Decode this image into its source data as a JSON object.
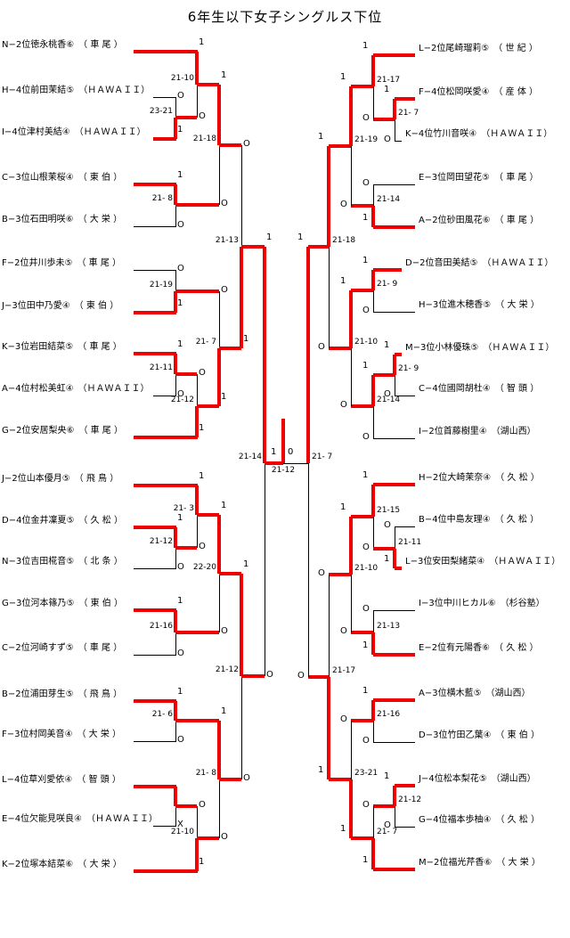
{
  "title": "6年生以下女子シングルス下位",
  "accent_color": "#ee0000",
  "line_color": "#000000",
  "players": [
    {
      "code": "N−2",
      "name": "徳永桃香",
      "grade": "⑥",
      "club": "車尾",
      "label": "N−2位徳永桃香⑥　（ 車 尾 ）"
    },
    {
      "code": "H−4",
      "name": "前田茉結",
      "grade": "⑤",
      "club": "HAWAII",
      "label": "H−4位前田茉結⑤　（ＨＡＷＡＩＩ）"
    },
    {
      "code": "I−4",
      "name": "津村美結",
      "grade": "④",
      "club": "HAWAII",
      "label": "I−4位津村美結④　（ＨＡＷＡＩＩ）"
    },
    {
      "code": "C−3",
      "name": "山根茉桜",
      "grade": "④",
      "club": "東伯",
      "label": "C−3位山根茉桜④　（ 東 伯 ）"
    },
    {
      "code": "B−3",
      "name": "石田明咲",
      "grade": "⑥",
      "club": "大栄",
      "label": "B−3位石田明咲⑥　（ 大 栄 ）"
    },
    {
      "code": "F−2",
      "name": "井川歩未",
      "grade": "⑤",
      "club": "車尾",
      "label": "F−2位井川歩未⑤　（ 車 尾 ）"
    },
    {
      "code": "J−3",
      "name": "田中乃愛",
      "grade": "④",
      "club": "東伯",
      "label": "J−3位田中乃愛④　（ 東 伯 ）"
    },
    {
      "code": "K−3",
      "name": "岩田結菜",
      "grade": "⑤",
      "club": "車尾",
      "label": "K−3位岩田結菜⑤　（ 車 尾 ）"
    },
    {
      "code": "A−4",
      "name": "村松美虹",
      "grade": "④",
      "club": "HAWAII",
      "label": "A−4位村松美虹④　（ＨＡＷＡＩＩ）"
    },
    {
      "code": "G−2",
      "name": "安居梨央",
      "grade": "⑥",
      "club": "車尾",
      "label": "G−2位安居梨央⑥　（ 車 尾 ）"
    },
    {
      "code": "J−2",
      "name": "山本優月",
      "grade": "⑤",
      "club": "飛鳥",
      "label": "J−2位山本優月⑤　（ 飛 鳥 ）"
    },
    {
      "code": "D−4",
      "name": "金井凜夏",
      "grade": "⑤",
      "club": "久松",
      "label": "D−4位金井凜夏⑤　（ 久 松 ）"
    },
    {
      "code": "N−3",
      "name": "吉田椛音",
      "grade": "⑤",
      "club": "北条",
      "label": "N−3位吉田椛音⑤　（ 北 条 ）"
    },
    {
      "code": "G−3",
      "name": "河本篠乃",
      "grade": "⑤",
      "club": "東伯",
      "label": "G−3位河本篠乃⑤　（ 東 伯 ）"
    },
    {
      "code": "C−2",
      "name": "河崎すず",
      "grade": "⑤",
      "club": "車尾",
      "label": "C−2位河崎すず⑤　（ 車 尾 ）"
    },
    {
      "code": "B−2",
      "name": "浦田芽生",
      "grade": "⑤",
      "club": "飛鳥",
      "label": "B−2位浦田芽生⑤　（ 飛 鳥 ）"
    },
    {
      "code": "F−3",
      "name": "村岡美音",
      "grade": "④",
      "club": "大栄",
      "label": "F−3位村岡美音④　（ 大 栄 ）"
    },
    {
      "code": "L−4",
      "name": "草刈愛依",
      "grade": "④",
      "club": "智頭",
      "label": "L−4位草刈愛依④　（ 智 頭 ）"
    },
    {
      "code": "E−4",
      "name": "欠能見咲良",
      "grade": "④",
      "club": "HAWAII",
      "label": "E−4位欠能見咲良④　（ＨＡＷＡＩＩ）"
    },
    {
      "code": "K−2",
      "name": "塚本結菜",
      "grade": "⑥",
      "club": "大栄",
      "label": "K−2位塚本結菜⑥　（ 大 栄 ）"
    },
    {
      "code": "L−2",
      "name": "尾崎瑠莉",
      "grade": "⑤",
      "club": "世紀",
      "label": "L−2位尾崎瑠莉⑤　（ 世 紀 ）"
    },
    {
      "code": "F−4",
      "name": "松岡咲愛",
      "grade": "④",
      "club": "産体",
      "label": "F−4位松岡咲愛④　（ 産 体 ）"
    },
    {
      "code": "K−4",
      "name": "竹川音咲",
      "grade": "④",
      "club": "HAWAII",
      "label": "K−4位竹川音咲④　（ＨＡＷＡＩＩ）"
    },
    {
      "code": "E−3",
      "name": "岡田望花",
      "grade": "⑤",
      "club": "車尾",
      "label": "E−3位岡田望花⑤　（ 車 尾 ）"
    },
    {
      "code": "A−2",
      "name": "砂田風花",
      "grade": "⑥",
      "club": "車尾",
      "label": "A−2位砂田風花⑥　（ 車 尾 ）"
    },
    {
      "code": "D−2",
      "name": "音田美結",
      "grade": "⑤",
      "club": "HAWAII",
      "label": "D−2位音田美結⑤　（ＨＡＷＡＩＩ）"
    },
    {
      "code": "H−3",
      "name": "進木穂香",
      "grade": "⑤",
      "club": "大栄",
      "label": "H−3位進木穂香⑤　（ 大 栄 ）"
    },
    {
      "code": "M−3",
      "name": "小林優珠",
      "grade": "⑤",
      "club": "HAWAII",
      "label": "M−3位小林優珠⑤　（ＨＡＷＡＩＩ）"
    },
    {
      "code": "C−4",
      "name": "國岡胡杜",
      "grade": "④",
      "club": "智頭",
      "label": "C−4位國岡胡杜④　（ 智 頭 ）"
    },
    {
      "code": "I−2",
      "name": "首藤樹里",
      "grade": "④",
      "club": "湖山西",
      "label": "I−2位首藤樹里④　（湖山西）"
    },
    {
      "code": "H−2",
      "name": "大崎茉奈",
      "grade": "④",
      "club": "久松",
      "label": "H−2位大崎茉奈④　（ 久 松 ）"
    },
    {
      "code": "B−4",
      "name": "中島友理",
      "grade": "④",
      "club": "久松",
      "label": "B−4位中島友理④　（ 久 松 ）"
    },
    {
      "code": "L−3",
      "name": "安田梨緒菜",
      "grade": "④",
      "club": "HAWAII",
      "label": "L−3位安田梨緒菜④　（ＨＡＷＡＩＩ）"
    },
    {
      "code": "I−3",
      "name": "中川ヒカル",
      "grade": "⑥",
      "club": "杉谷塾",
      "label": "I−3位中川ヒカル⑥　（杉谷塾）"
    },
    {
      "code": "E−2",
      "name": "有元陽香",
      "grade": "⑥",
      "club": "久松",
      "label": "E−2位有元陽香⑥　（ 久 松 ）"
    },
    {
      "code": "A−3",
      "name": "横木藍",
      "grade": "⑤",
      "club": "湖山西",
      "label": "A−3位横木藍⑤　（湖山西）"
    },
    {
      "code": "D−3",
      "name": "竹田乙葉",
      "grade": "④",
      "club": "東伯",
      "label": "D−3位竹田乙葉④　（ 東 伯 ）"
    },
    {
      "code": "J−4",
      "name": "松本梨花",
      "grade": "⑤",
      "club": "湖山西",
      "label": "J−4位松本梨花⑤　（湖山西）"
    },
    {
      "code": "G−4",
      "name": "福本歩柚",
      "grade": "④",
      "club": "久松",
      "label": "G−4位福本歩柚④　（ 久 松 ）"
    },
    {
      "code": "M−2",
      "name": "福光芹香",
      "grade": "⑥",
      "club": "大栄",
      "label": "M−2位福光芹香⑥　（ 大 栄 ）"
    }
  ],
  "matches": {
    "m1": {
      "score": "23-21",
      "winner": "津村美結",
      "loser": "前田茉結",
      "w_mark": "1",
      "l_mark": "O"
    },
    "m2": {
      "score": "21-10",
      "winner": "徳永桃香",
      "loser": "津村美結",
      "w_mark": "1",
      "l_mark": "O"
    },
    "m3": {
      "score": "21- 8",
      "winner": "山根茉桜",
      "loser": "石田明咲",
      "w_mark": "1",
      "l_mark": "O"
    },
    "m4": {
      "score": "21-18",
      "winner": "徳永桃香",
      "loser": "山根茉桜",
      "w_mark": "1",
      "l_mark": "O"
    },
    "m5": {
      "score": "21-19",
      "winner": "田中乃愛",
      "loser": "井川歩未",
      "w_mark": "1",
      "l_mark": "O"
    },
    "m6": {
      "score": "21-11",
      "winner": "岩田結菜",
      "loser": "村松美虹",
      "w_mark": "1",
      "l_mark": "O"
    },
    "m7": {
      "score": "21-12",
      "winner": "安居梨央",
      "loser": "岩田結菜",
      "w_mark": "1",
      "l_mark": "O"
    },
    "m8": {
      "score": "21- 7",
      "winner": "安居梨央",
      "loser": "田中乃愛",
      "w_mark": "1",
      "l_mark": "O"
    },
    "m9": {
      "score": "21-13",
      "winner": "安居梨央",
      "loser": "徳永桃香",
      "w_mark": "1",
      "l_mark": "O"
    },
    "m10": {
      "score": "21-12",
      "winner": "金井凜夏",
      "loser": "吉田椛音",
      "w_mark": "1",
      "l_mark": "O"
    },
    "m11": {
      "score": "21- 3",
      "winner": "山本優月",
      "loser": "金井凜夏",
      "w_mark": "1",
      "l_mark": "O"
    },
    "m12": {
      "score": "21-16",
      "winner": "河本篠乃",
      "loser": "河崎すず",
      "w_mark": "1",
      "l_mark": "O"
    },
    "m13": {
      "score": "22-20",
      "winner": "山本優月",
      "loser": "河本篠乃",
      "w_mark": "1",
      "l_mark": "O"
    },
    "m14": {
      "score": "21- 6",
      "winner": "浦田芽生",
      "loser": "村岡美音",
      "w_mark": "1",
      "l_mark": "O"
    },
    "m15": {
      "score": "",
      "winner": "草刈愛依",
      "loser": "欠能見咲良",
      "w_mark": "",
      "l_mark": "X",
      "note": "walkover"
    },
    "m16": {
      "score": "21-10",
      "winner": "塚本結菜",
      "loser": "草刈愛依",
      "w_mark": "1",
      "l_mark": "O"
    },
    "m17": {
      "score": "21- 8",
      "winner": "浦田芽生",
      "loser": "塚本結菜",
      "w_mark": "1",
      "l_mark": "O"
    },
    "m18": {
      "score": "21-12",
      "winner": "山本優月",
      "loser": "浦田芽生",
      "w_mark": "1",
      "l_mark": "O"
    },
    "fL": {
      "score": "21-14",
      "winner": "安居梨央",
      "loser": "山本優月",
      "w_mark": "1",
      "l_mark": "O"
    },
    "m20": {
      "score": "21- 7",
      "winner": "松岡咲愛",
      "loser": "竹川音咲",
      "w_mark": "1",
      "l_mark": "O"
    },
    "m21": {
      "score": "21-17",
      "winner": "尾崎瑠莉",
      "loser": "松岡咲愛",
      "w_mark": "1",
      "l_mark": "O"
    },
    "m22": {
      "score": "21-14",
      "winner": "砂田風花",
      "loser": "岡田望花",
      "w_mark": "1",
      "l_mark": "O"
    },
    "m23": {
      "score": "21-19",
      "winner": "尾崎瑠莉",
      "loser": "砂田風花",
      "w_mark": "1",
      "l_mark": "O"
    },
    "m24": {
      "score": "21- 9",
      "winner": "音田美結",
      "loser": "進木穂香",
      "w_mark": "1",
      "l_mark": "O"
    },
    "m25": {
      "score": "21- 9",
      "winner": "小林優珠",
      "loser": "國岡胡杜",
      "w_mark": "1",
      "l_mark": "O"
    },
    "m26": {
      "score": "21-14",
      "winner": "小林優珠",
      "loser": "首藤樹里",
      "w_mark": "1",
      "l_mark": "O"
    },
    "m27": {
      "score": "21-10",
      "winner": "音田美結",
      "loser": "小林優珠",
      "w_mark": "1",
      "l_mark": "O"
    },
    "m28": {
      "score": "21-18",
      "winner": "尾崎瑠莉",
      "loser": "音田美結",
      "w_mark": "1",
      "l_mark": "O"
    },
    "m29": {
      "score": "21-15",
      "winner": "大崎茉奈",
      "loser": "安田梨緒菜",
      "w_mark": "1",
      "l_mark": "O"
    },
    "m30": {
      "score": "21-11",
      "winner": "安田梨緒菜",
      "loser": "中島友理",
      "w_mark": "1",
      "l_mark": "O"
    },
    "m31": {
      "score": "21-13",
      "winner": "有元陽香",
      "loser": "中川ヒカル",
      "w_mark": "1",
      "l_mark": "O"
    },
    "m32": {
      "score": "21-10",
      "winner": "大崎茉奈",
      "loser": "有元陽香",
      "w_mark": "1",
      "l_mark": "O"
    },
    "m33": {
      "score": "21-16",
      "winner": "横木藍",
      "loser": "竹田乙葉",
      "w_mark": "1",
      "l_mark": "O"
    },
    "m34": {
      "score": "21-12",
      "winner": "松本梨花",
      "loser": "福本歩柚",
      "w_mark": "1",
      "l_mark": "O"
    },
    "m35": {
      "score": "21- 7",
      "winner": "福光芹香",
      "loser": "松本梨花",
      "w_mark": "1",
      "l_mark": "O"
    },
    "m36": {
      "score": "23-21",
      "winner": "福光芹香",
      "loser": "横木藍",
      "w_mark": "1",
      "l_mark": "O"
    },
    "m37": {
      "score": "21-17",
      "winner": "福光芹香",
      "loser": "大崎茉奈",
      "w_mark": "1",
      "l_mark": "O"
    },
    "fR": {
      "score": "21- 7",
      "winner": "尾崎瑠莉",
      "loser": "福光芹香",
      "w_mark": "1",
      "l_mark": "O"
    },
    "gf": {
      "score": "21-12",
      "winner": "安居梨央",
      "loser": "尾崎瑠莉",
      "w_mark": "1",
      "l_mark": "0"
    }
  },
  "chart_data": {
    "type": "bracket",
    "title": "6年生以下女子シングルス下位",
    "champion": "G−2位 安居梨央⑥（車尾）",
    "runner_up": "L−2位 尾崎瑠莉⑤（世紀）",
    "final_score": "21-12",
    "semifinal_scores": {
      "left": "21-14",
      "right": "21- 7"
    },
    "mark_semantics": {
      "1": "win",
      "O": "loss",
      "X": "walkover loss",
      "0": "final loss"
    },
    "entrants": 40
  }
}
